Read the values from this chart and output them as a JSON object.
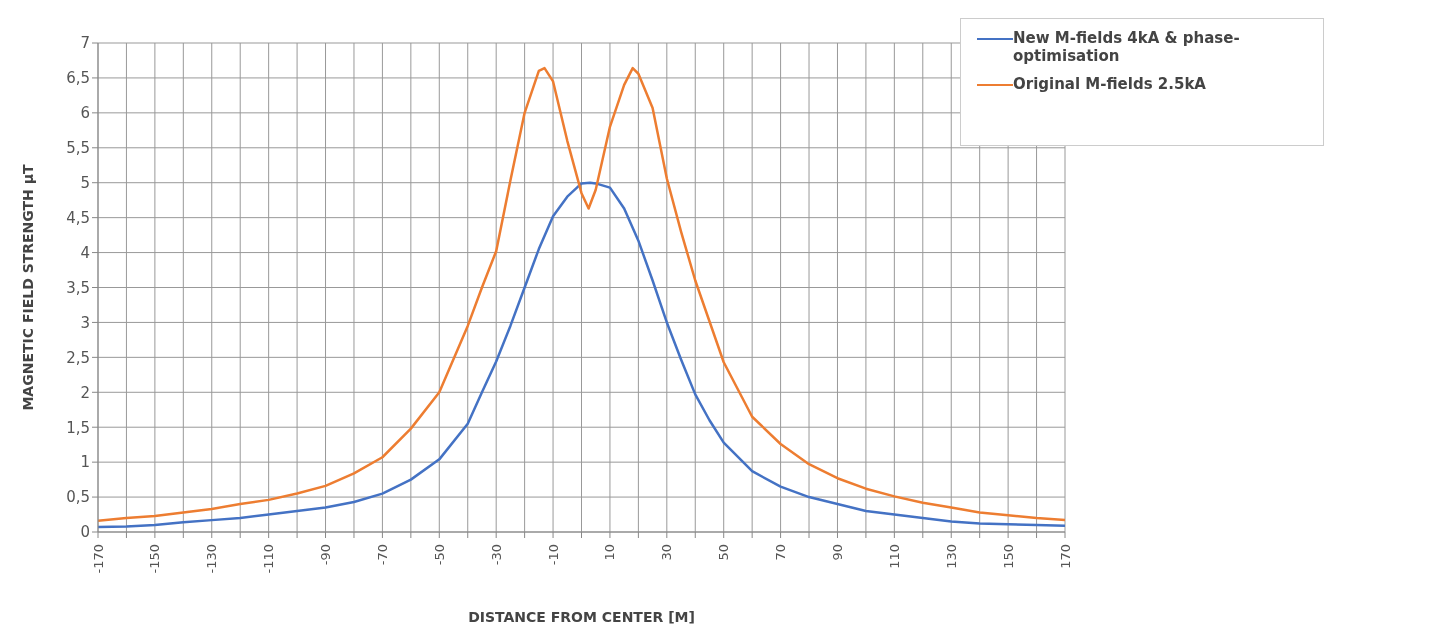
{
  "chart_data": {
    "type": "line",
    "xlabel": "DISTANCE FROM CENTER [M]",
    "ylabel": "MAGNETIC FIELD STRENGTH μT",
    "xlim": [
      -170,
      170
    ],
    "xticks": [
      -170,
      {
        "value": -160,
        "label": null
      },
      -150,
      {
        "value": -140,
        "label": null
      },
      -130,
      {
        "value": -120,
        "label": null
      },
      -110,
      {
        "value": -100,
        "label": null
      },
      -90,
      {
        "value": -80,
        "label": null
      },
      -70,
      {
        "value": -60,
        "label": null
      },
      -50,
      {
        "value": -40,
        "label": null
      },
      -30,
      {
        "value": -20,
        "label": null
      },
      -10,
      {
        "value": 0,
        "label": null
      },
      10,
      {
        "value": 20,
        "label": null
      },
      30,
      {
        "value": 40,
        "label": null
      },
      50,
      {
        "value": 60,
        "label": null
      },
      70,
      {
        "value": 80,
        "label": null
      },
      90,
      {
        "value": 100,
        "label": null
      },
      110,
      {
        "value": 120,
        "label": null
      },
      130,
      {
        "value": 140,
        "label": null
      },
      150,
      {
        "value": 160,
        "label": null
      },
      170
    ],
    "ylim": [
      0,
      7
    ],
    "yticks": [
      0,
      {
        "value": 0.5,
        "label": "0,5"
      },
      1,
      {
        "value": 1.5,
        "label": "1,5"
      },
      2,
      {
        "value": 2.5,
        "label": "2,5"
      },
      3,
      {
        "value": 3.5,
        "label": "3,5"
      },
      4,
      {
        "value": 4.5,
        "label": "4,5"
      },
      5,
      {
        "value": 5.5,
        "label": "5,5"
      },
      6,
      {
        "value": 6.5,
        "label": "6,5"
      },
      7
    ],
    "grid": true,
    "legend": "top right",
    "marker": "none",
    "line_style": "solid",
    "series": [
      {
        "name": "New M-fields 4kA & phase-optimisation",
        "color": "#4472c4",
        "x": [
          -170,
          -160,
          -150,
          -140,
          -130,
          -120,
          -110,
          -100,
          -90,
          -80,
          -70,
          -60,
          -50,
          -40,
          -35,
          -30,
          -25,
          -20,
          -15,
          -10,
          -5,
          0,
          3,
          5,
          10,
          15,
          20,
          25,
          30,
          35,
          40,
          45,
          50,
          60,
          70,
          80,
          90,
          100,
          110,
          120,
          130,
          140,
          150,
          160,
          170
        ],
        "values": [
          0.07,
          0.08,
          0.1,
          0.14,
          0.17,
          0.2,
          0.25,
          0.3,
          0.35,
          0.43,
          0.55,
          0.75,
          1.04,
          1.55,
          2.0,
          2.44,
          2.95,
          3.5,
          4.05,
          4.52,
          4.8,
          4.99,
          5.0,
          4.99,
          4.93,
          4.63,
          4.17,
          3.6,
          3.0,
          2.47,
          1.97,
          1.6,
          1.28,
          0.87,
          0.65,
          0.5,
          0.4,
          0.3,
          0.25,
          0.2,
          0.15,
          0.12,
          0.11,
          0.1,
          0.09
        ]
      },
      {
        "name": "Original M-fields 2.5kA",
        "color": "#ed7d31",
        "x": [
          -170,
          -160,
          -150,
          -140,
          -130,
          -120,
          -110,
          -100,
          -90,
          -80,
          -70,
          -60,
          -50,
          -40,
          -35,
          -30,
          -25,
          -20,
          -15,
          -13,
          -10,
          -5,
          0,
          2.5,
          5,
          10,
          15,
          18,
          20,
          25,
          30,
          35,
          40,
          50,
          60,
          70,
          80,
          90,
          100,
          110,
          120,
          130,
          140,
          150,
          160,
          170
        ],
        "values": [
          0.16,
          0.2,
          0.23,
          0.28,
          0.33,
          0.4,
          0.46,
          0.55,
          0.66,
          0.84,
          1.07,
          1.48,
          2.0,
          2.95,
          3.5,
          4.02,
          5.03,
          6.0,
          6.6,
          6.64,
          6.45,
          5.6,
          4.85,
          4.63,
          4.9,
          5.8,
          6.4,
          6.64,
          6.56,
          6.07,
          5.06,
          4.3,
          3.6,
          2.43,
          1.65,
          1.26,
          0.97,
          0.77,
          0.62,
          0.51,
          0.42,
          0.35,
          0.28,
          0.24,
          0.2,
          0.17
        ]
      }
    ]
  }
}
